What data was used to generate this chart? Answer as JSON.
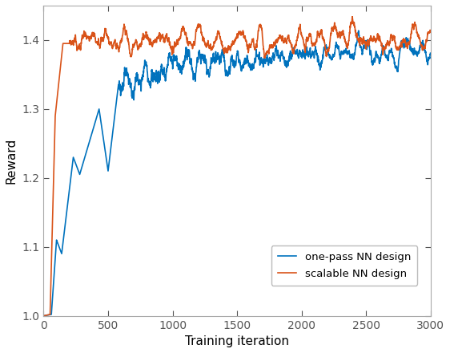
{
  "title": "",
  "xlabel": "Training iteration",
  "ylabel": "Reward",
  "xlim": [
    0,
    3000
  ],
  "ylim": [
    1.0,
    1.45
  ],
  "yticks": [
    1.0,
    1.1,
    1.2,
    1.3,
    1.4
  ],
  "xticks": [
    0,
    500,
    1000,
    1500,
    2000,
    2500,
    3000
  ],
  "blue_color": "#0072bd",
  "orange_color": "#d95319",
  "legend_labels": [
    "one-pass NN design",
    "scalable NN design"
  ],
  "line_width": 1.2,
  "figsize": [
    5.62,
    4.4
  ],
  "dpi": 100
}
